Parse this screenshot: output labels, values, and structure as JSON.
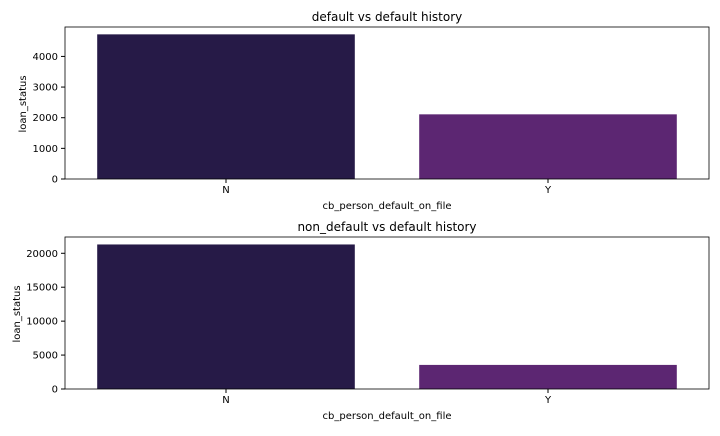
{
  "chart_data": [
    {
      "type": "bar",
      "title": "default vs default history",
      "xlabel": "cb_person_default_on_file",
      "ylabel": "loan_status",
      "categories": [
        "N",
        "Y"
      ],
      "values": [
        4720,
        2110
      ],
      "colors": [
        "#261a47",
        "#5c2672"
      ],
      "ylim": [
        0,
        4960
      ],
      "yticks": [
        0,
        1000,
        2000,
        3000,
        4000
      ],
      "grid": false
    },
    {
      "type": "bar",
      "title": "non_default vs default history",
      "xlabel": "cb_person_default_on_file",
      "ylabel": "loan_status",
      "categories": [
        "N",
        "Y"
      ],
      "values": [
        21300,
        3550
      ],
      "colors": [
        "#261a47",
        "#5c2672"
      ],
      "ylim": [
        0,
        22400
      ],
      "yticks": [
        0,
        5000,
        10000,
        15000,
        20000
      ],
      "grid": false
    }
  ]
}
